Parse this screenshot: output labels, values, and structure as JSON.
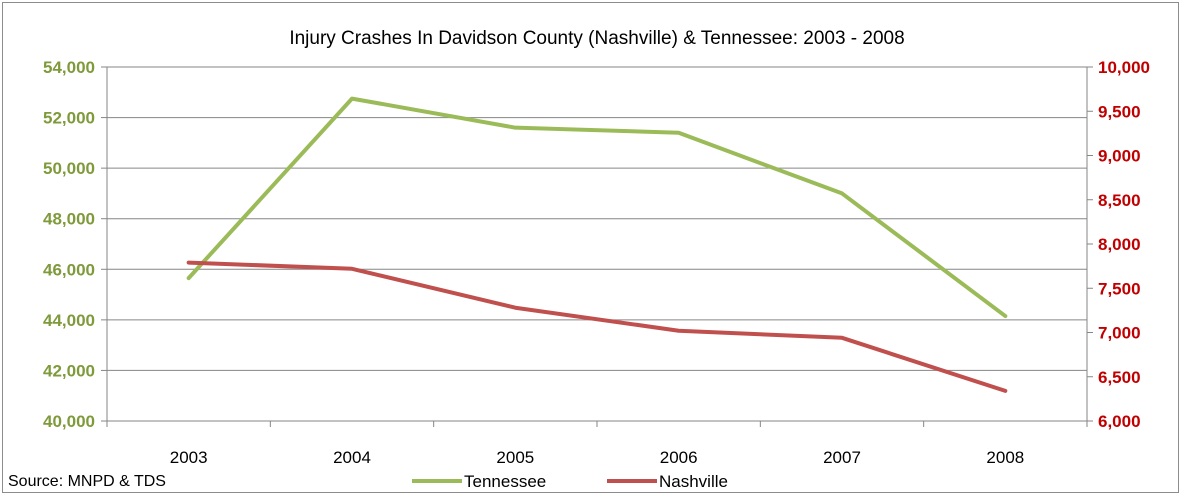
{
  "chart_data": {
    "type": "line",
    "title": "Injury Crashes In Davidson County (Nashville) & Tennessee: 2003 - 2008",
    "categories": [
      "2003",
      "2004",
      "2005",
      "2006",
      "2007",
      "2008"
    ],
    "series": [
      {
        "name": "Tennessee",
        "axis": "left",
        "color": "#9bbb59",
        "values": [
          45650,
          52750,
          51600,
          51400,
          49000,
          44150
        ]
      },
      {
        "name": "Nashville",
        "axis": "right",
        "color": "#c0504d",
        "values": [
          7790,
          7720,
          7280,
          7020,
          6940,
          6340
        ]
      }
    ],
    "y_left": {
      "ylim": [
        40000,
        54000
      ],
      "ticks": [
        40000,
        42000,
        44000,
        46000,
        48000,
        50000,
        52000,
        54000
      ],
      "tick_labels": [
        "40,000",
        "42,000",
        "44,000",
        "46,000",
        "48,000",
        "50,000",
        "52,000",
        "54,000"
      ],
      "color": "#7f9a3b"
    },
    "y_right": {
      "ylim": [
        6000,
        10000
      ],
      "ticks": [
        6000,
        6500,
        7000,
        7500,
        8000,
        8500,
        9000,
        9500,
        10000
      ],
      "tick_labels": [
        "6,000",
        "6,500",
        "7,000",
        "7,500",
        "8,000",
        "8,500",
        "9,000",
        "9,500",
        "10,000"
      ],
      "color": "#c00000"
    },
    "grid": true,
    "legend_placement": "bottom",
    "source": "Source: MNPD & TDS"
  }
}
